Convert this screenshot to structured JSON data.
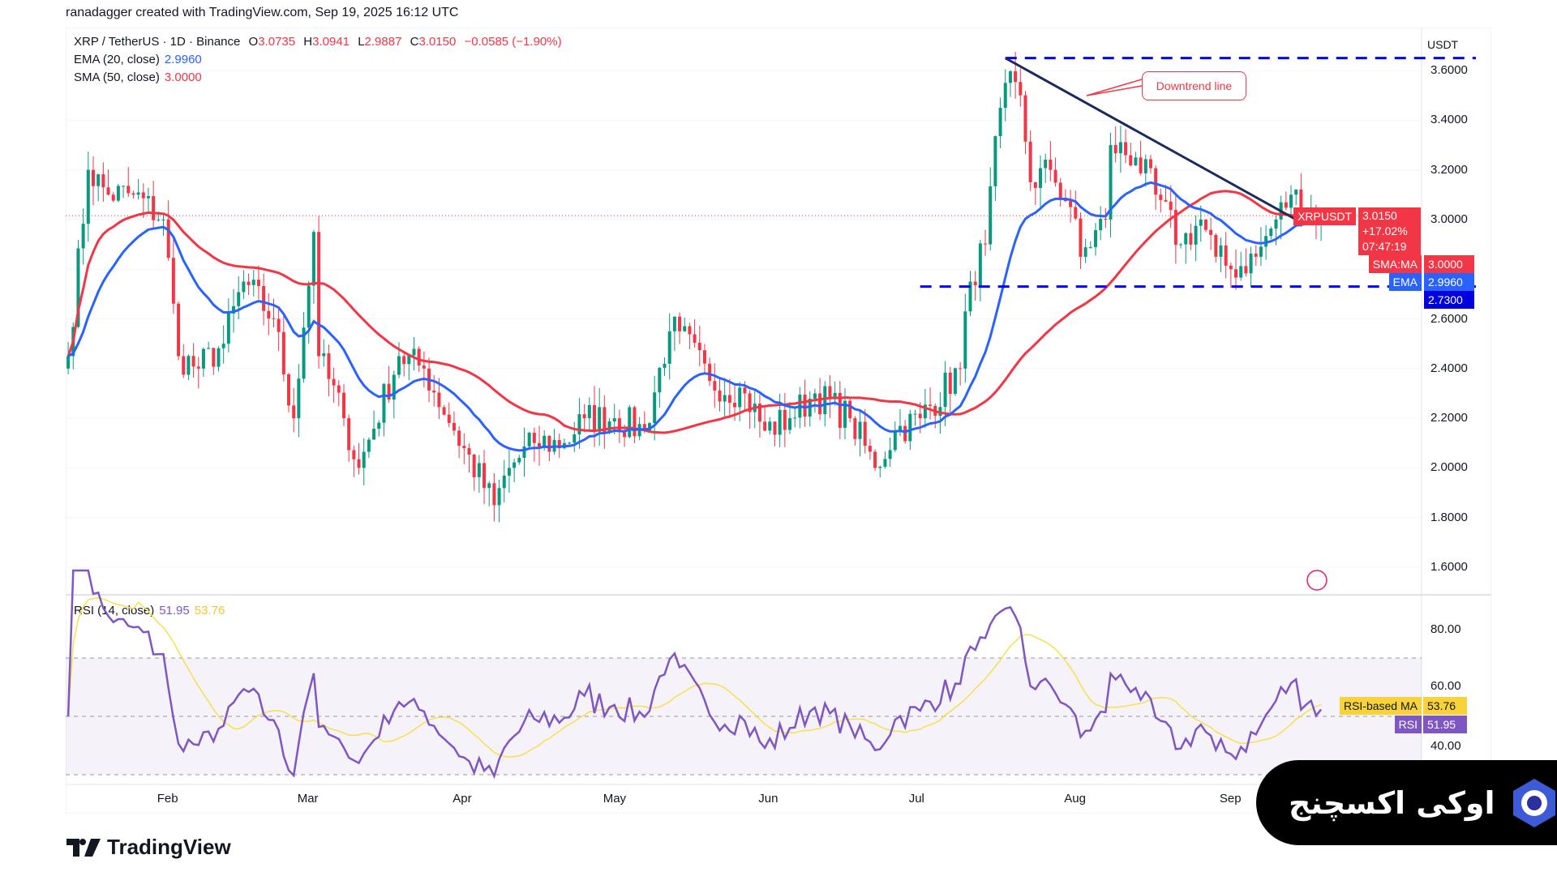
{
  "credit": "ranadagger created with TradingView.com, Sep 19, 2025 16:12 UTC",
  "legend": {
    "symbol": "XRP / TetherUS · 1D · Binance",
    "o_label": "O",
    "o": "3.0735",
    "h_label": "H",
    "h": "3.0941",
    "l_label": "L",
    "l": "2.9887",
    "c_label": "C",
    "c": "3.0150",
    "change": "−0.0585 (−1.90%)",
    "ema_label": "EMA (20, close)",
    "ema": "2.9960",
    "sma_label": "SMA (50, close)",
    "sma": "3.0000",
    "rsi_label": "RSI (14, close)",
    "rsi": "51.95",
    "rsi_ma": "53.76"
  },
  "price_axis": {
    "currency": "USDT",
    "ticks": [
      "3.6000",
      "3.4000",
      "3.2000",
      "3.0000",
      "2.6000",
      "2.4000",
      "2.2000",
      "2.0000",
      "1.8000",
      "1.6000"
    ]
  },
  "price_tags": {
    "symbol": "XRPUSDT",
    "price": "3.0150",
    "change": "+17.02%",
    "countdown": "07:47:19",
    "sma_label": "SMA:MA",
    "sma": "3.0000",
    "ema_label": "EMA",
    "ema": "2.9960",
    "level": "2.7300"
  },
  "rsi_axis": {
    "ticks": [
      "80.00",
      "60.00",
      "40.00"
    ],
    "ma_label": "RSI-based MA",
    "ma": "53.76",
    "rsi_label": "RSI",
    "rsi": "51.95"
  },
  "time_axis": [
    "Feb",
    "Mar",
    "Apr",
    "May",
    "Jun",
    "Jul",
    "Aug",
    "Sep"
  ],
  "annotation": "Downtrend line",
  "logo": "TradingView",
  "watermark": "اوکی اکسچنج",
  "colors": {
    "up": "#089981",
    "down": "#f23645",
    "ema": "#2962ff",
    "sma": "#f23645",
    "rsi": "#7e57c2",
    "rsi_ma": "#f7e04b",
    "level": "#0000ff",
    "trend": "#1a2b5c"
  },
  "chart_data": {
    "type": "candlestick",
    "title": "XRP / TetherUS · 1D · Binance",
    "ylim": [
      1.5,
      3.75
    ],
    "x_range": [
      "01-12",
      "09-19"
    ],
    "close_anchors": [
      [
        "01-12",
        2.45
      ],
      [
        "01-16",
        3.2
      ],
      [
        "01-20",
        3.1
      ],
      [
        "01-25",
        3.1
      ],
      [
        "01-31",
        3.0
      ],
      [
        "02-03",
        2.45
      ],
      [
        "02-07",
        2.4
      ],
      [
        "02-12",
        2.5
      ],
      [
        "02-16",
        2.75
      ],
      [
        "02-22",
        2.6
      ],
      [
        "02-26",
        2.2
      ],
      [
        "03-02",
        2.95
      ],
      [
        "03-03",
        2.45
      ],
      [
        "03-08",
        2.2
      ],
      [
        "03-11",
        2.0
      ],
      [
        "03-19",
        2.45
      ],
      [
        "03-24",
        2.4
      ],
      [
        "03-30",
        2.15
      ],
      [
        "04-07",
        1.85
      ],
      [
        "04-10",
        2.0
      ],
      [
        "04-15",
        2.1
      ],
      [
        "04-21",
        2.1
      ],
      [
        "04-25",
        2.2
      ],
      [
        "05-01",
        2.2
      ],
      [
        "05-07",
        2.15
      ],
      [
        "05-12",
        2.55
      ],
      [
        "05-14",
        2.55
      ],
      [
        "05-20",
        2.35
      ],
      [
        "05-27",
        2.3
      ],
      [
        "05-31",
        2.15
      ],
      [
        "06-05",
        2.2
      ],
      [
        "06-10",
        2.3
      ],
      [
        "06-17",
        2.2
      ],
      [
        "06-22",
        2.0
      ],
      [
        "06-26",
        2.15
      ],
      [
        "07-01",
        2.2
      ],
      [
        "07-09",
        2.4
      ],
      [
        "07-11",
        2.75
      ],
      [
        "07-14",
        2.9
      ],
      [
        "07-17",
        3.45
      ],
      [
        "07-18",
        3.55
      ],
      [
        "07-21",
        3.5
      ],
      [
        "07-23",
        3.15
      ],
      [
        "07-27",
        3.2
      ],
      [
        "07-31",
        3.05
      ],
      [
        "08-02",
        2.85
      ],
      [
        "08-07",
        3.0
      ],
      [
        "08-08",
        3.3
      ],
      [
        "08-13",
        3.25
      ],
      [
        "08-17",
        3.1
      ],
      [
        "08-22",
        2.9
      ],
      [
        "08-26",
        3.0
      ],
      [
        "08-29",
        2.85
      ],
      [
        "09-01",
        2.8
      ],
      [
        "09-06",
        2.85
      ],
      [
        "09-10",
        3.0
      ],
      [
        "09-13",
        3.1
      ],
      [
        "09-19",
        3.015
      ]
    ],
    "levels": [
      {
        "value": 3.65,
        "from": "07-18"
      },
      {
        "value": 2.73,
        "from": "07-01"
      }
    ],
    "trendline": {
      "from": [
        "07-18",
        3.65
      ],
      "to": [
        "09-14",
        3.0
      ]
    },
    "indicators": {
      "ema": 20,
      "sma": 50,
      "rsi": 14,
      "rsi_band": [
        30,
        70
      ]
    }
  }
}
